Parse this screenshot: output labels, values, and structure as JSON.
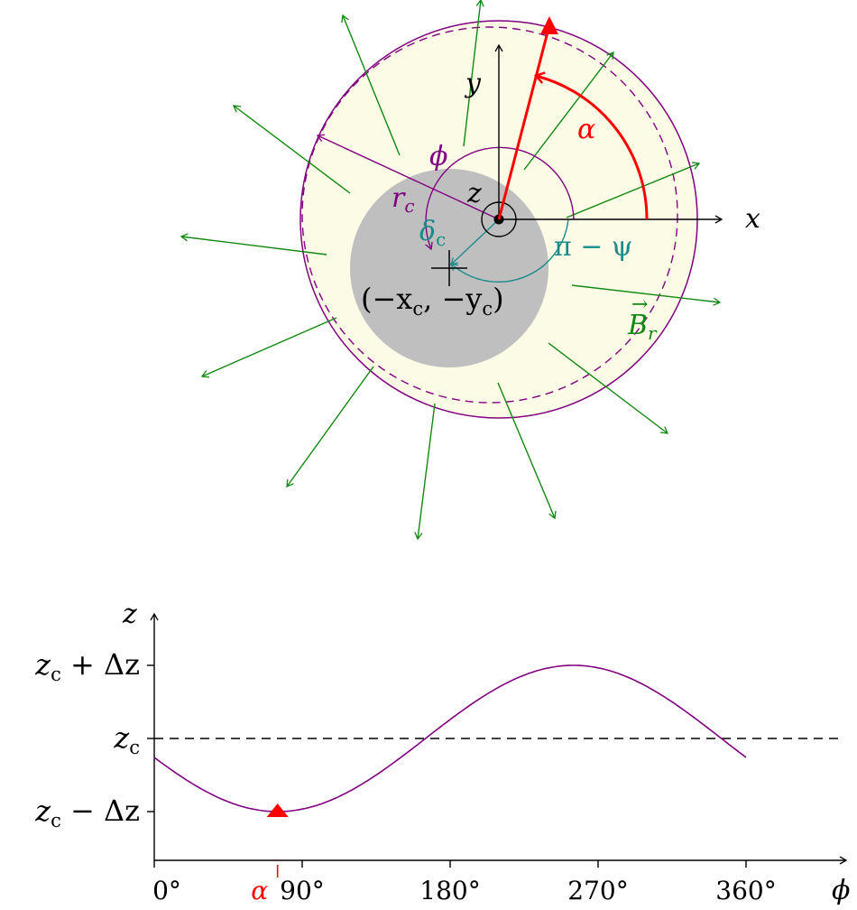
{
  "colors": {
    "purple": "#800080",
    "green": "#118811",
    "red": "#ff0000",
    "teal": "#1a8a8a",
    "gray": "#bfbfbf",
    "cream": "#fcfbe6",
    "black": "#000000"
  },
  "top_diagram": {
    "axis_x_label": "x",
    "axis_y_label": "y",
    "axis_z_label": "z",
    "alpha_label": "α",
    "phi_label": "ϕ",
    "rc_label": "r",
    "rc_sub": "c",
    "delta_label": "δ",
    "delta_sub": "c",
    "pi_psi_label": "π − ψ",
    "center_label": "(−x",
    "center_sub1": "c",
    "center_mid": ", −y",
    "center_sub2": "c",
    "center_end": ")",
    "b_label": "B",
    "b_sub": "r",
    "b_arrow": "→"
  },
  "bottom_chart": {
    "z_axis_label": "z",
    "phi_axis_label": "ϕ",
    "y_ticks": [
      {
        "main": "z",
        "sub": "c",
        "rest": " + Δz"
      },
      {
        "main": "z",
        "sub": "c",
        "rest": ""
      },
      {
        "main": "z",
        "sub": "c",
        "rest": " − Δz"
      }
    ],
    "x_ticks": [
      "0°",
      "90°",
      "180°",
      "270°",
      "360°"
    ],
    "alpha_marker": "α"
  },
  "chart_data": {
    "type": "line",
    "title": "",
    "xlabel": "ϕ",
    "ylabel": "z",
    "x_ticks": [
      "0°",
      "90°",
      "180°",
      "270°",
      "360°"
    ],
    "y_ticks": [
      "zc − Δz",
      "zc",
      "zc + Δz"
    ],
    "xlim": [
      0,
      360
    ],
    "ylim": [
      -1,
      1
    ],
    "alpha_deg": 75,
    "series": [
      {
        "x": [
          0,
          15,
          30,
          45,
          60,
          75,
          90,
          105,
          120,
          135,
          150,
          165,
          180,
          195,
          210,
          225,
          240,
          255,
          270,
          285,
          300,
          315,
          330,
          345,
          360
        ],
        "values": [
          -0.27,
          -0.5,
          -0.71,
          -0.87,
          -0.97,
          -1.0,
          -0.97,
          -0.87,
          -0.71,
          -0.5,
          -0.26,
          0.0,
          0.26,
          0.5,
          0.71,
          0.87,
          0.97,
          1.0,
          0.97,
          0.87,
          0.71,
          0.5,
          0.26,
          0.0,
          -0.27
        ]
      }
    ],
    "reference_line": {
      "y": 0,
      "style": "dashed"
    }
  }
}
